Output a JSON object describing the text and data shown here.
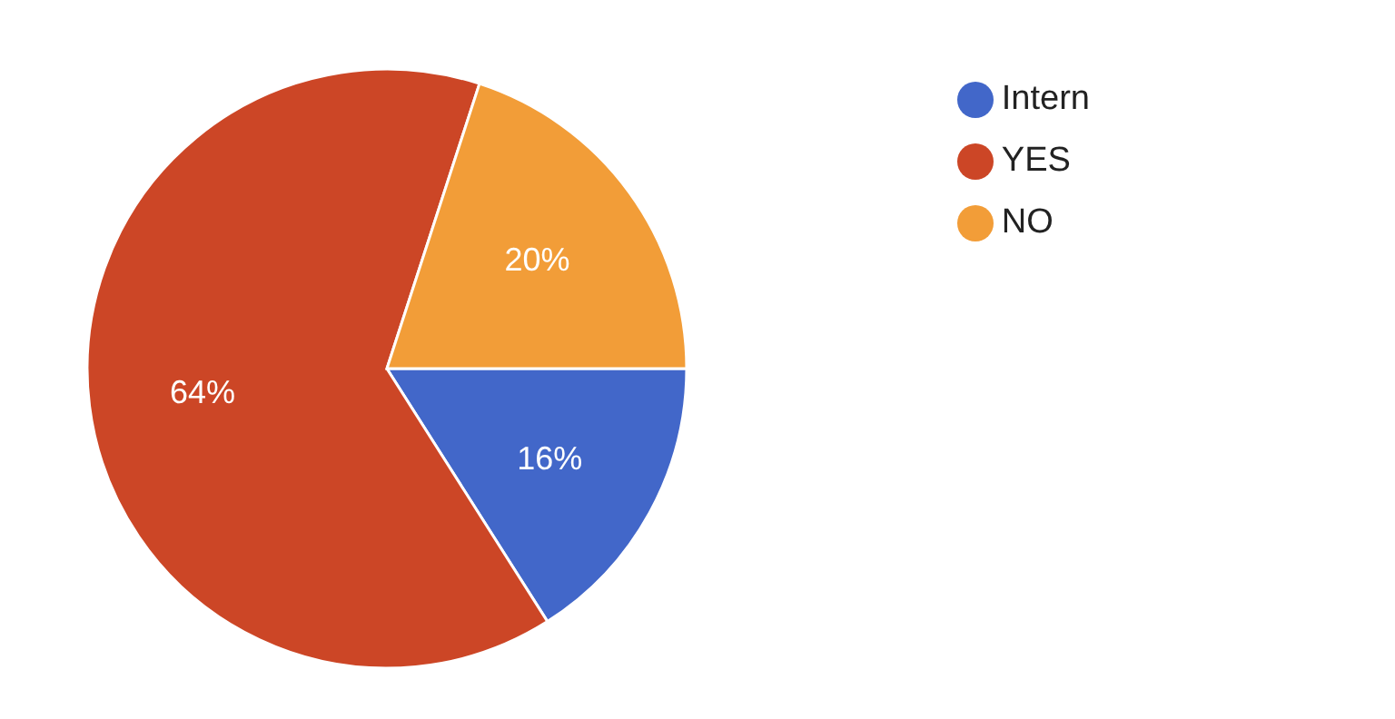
{
  "chart_data": {
    "type": "pie",
    "categories": [
      "Intern",
      "YES",
      "NO"
    ],
    "values": [
      16,
      64,
      20
    ],
    "colors": [
      "#4267c9",
      "#cc4626",
      "#f29d38"
    ],
    "value_labels": [
      "16%",
      "64%",
      "20%"
    ],
    "legend": "top right"
  }
}
